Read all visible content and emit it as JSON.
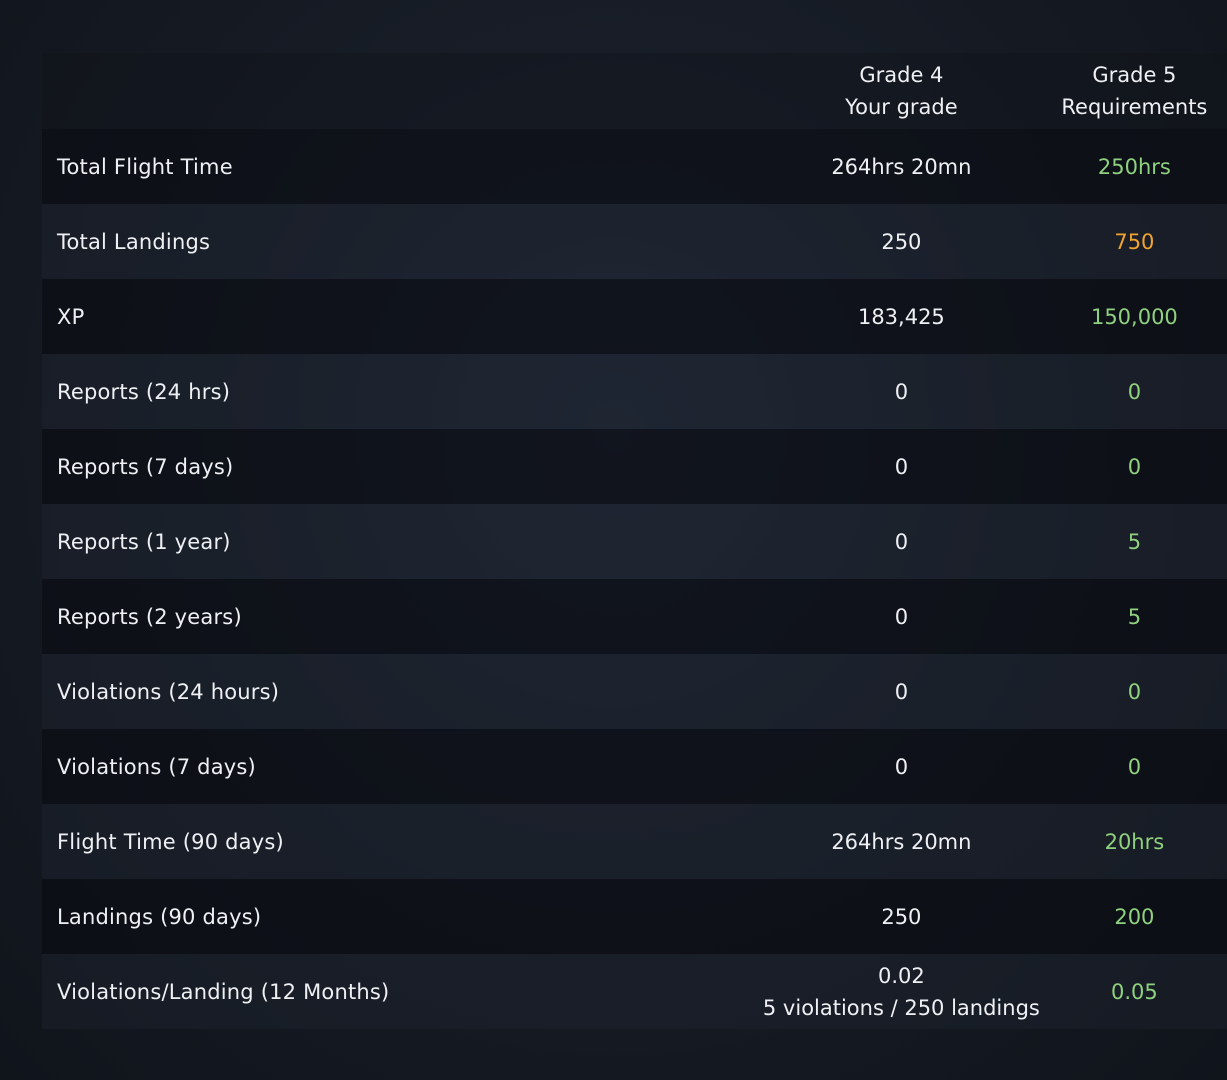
{
  "header": {
    "current_grade": "Grade 4",
    "current_grade_sub": "Your grade",
    "next_grade": "Grade 5",
    "next_grade_sub": "Requirements"
  },
  "colors": {
    "met": "#8fd17f",
    "not_met": "#f0a32e"
  },
  "rows": [
    {
      "label": "Total Flight Time",
      "current": "264hrs 20mn",
      "required": "250hrs",
      "status": "met"
    },
    {
      "label": "Total Landings",
      "current": "250",
      "required": "750",
      "status": "not_met"
    },
    {
      "label": "XP",
      "current": "183,425",
      "required": "150,000",
      "status": "met"
    },
    {
      "label": "Reports (24 hrs)",
      "current": "0",
      "required": "0",
      "status": "met"
    },
    {
      "label": "Reports (7 days)",
      "current": "0",
      "required": "0",
      "status": "met"
    },
    {
      "label": "Reports (1 year)",
      "current": "0",
      "required": "5",
      "status": "met"
    },
    {
      "label": "Reports (2 years)",
      "current": "0",
      "required": "5",
      "status": "met"
    },
    {
      "label": "Violations (24 hours)",
      "current": "0",
      "required": "0",
      "status": "met"
    },
    {
      "label": "Violations (7 days)",
      "current": "0",
      "required": "0",
      "status": "met"
    },
    {
      "label": "Flight Time (90 days)",
      "current": "264hrs 20mn",
      "required": "20hrs",
      "status": "met"
    },
    {
      "label": "Landings (90 days)",
      "current": "250",
      "required": "200",
      "status": "met"
    },
    {
      "label": "Violations/Landing (12 Months)",
      "current": "0.02",
      "current_detail": "5 violations / 250 landings",
      "required": "0.05",
      "status": "met"
    }
  ]
}
